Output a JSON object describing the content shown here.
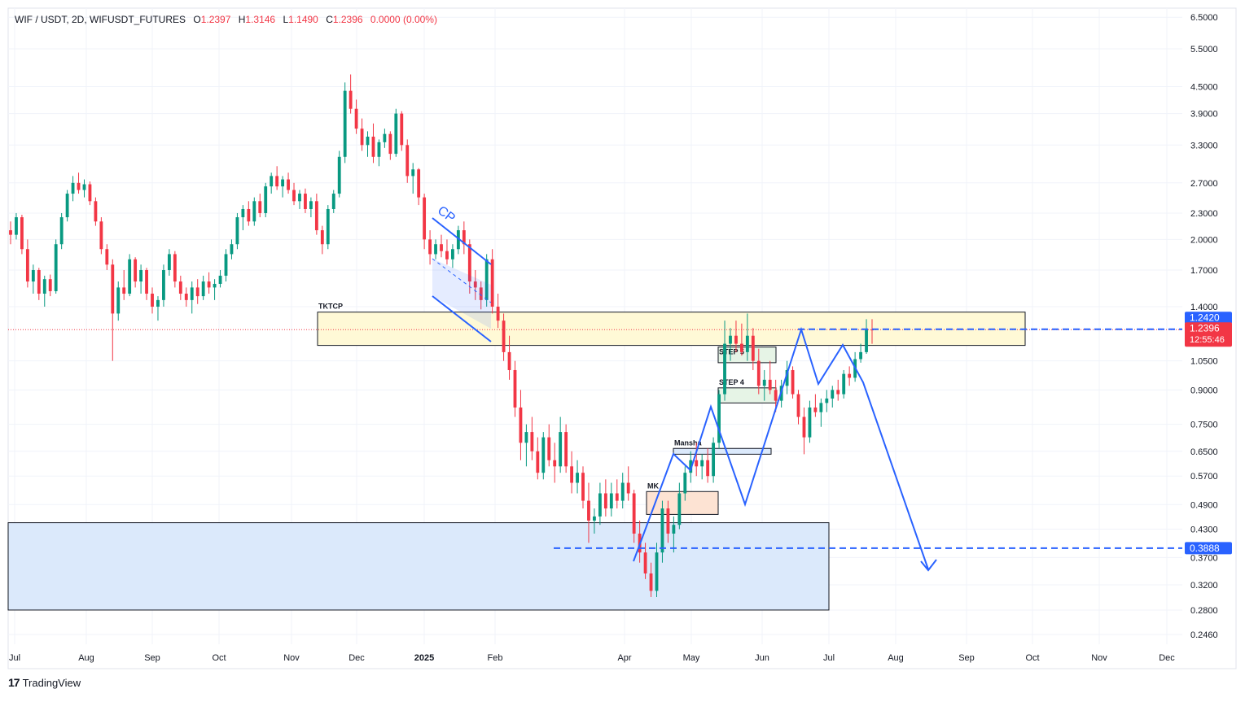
{
  "header": {
    "symbol": "WIF / USDT, 2D, WIFUSDT_FUTURES",
    "open_label": "O",
    "open": "1.2397",
    "high_label": "H",
    "high": "1.3146",
    "low_label": "L",
    "low": "1.1490",
    "close_label": "C",
    "close": "1.2396",
    "change": "0.0000 (0.00%)"
  },
  "branding": {
    "logo_mark": "17",
    "logo_text": "TradingView"
  },
  "colors": {
    "up": "#089981",
    "down": "#f23645",
    "drawing": "#2962ff",
    "zone_yellow": "#fff9d6",
    "zone_blue": "#dbe9fb"
  },
  "chart_data": {
    "type": "candlestick",
    "scale": "log",
    "ylim": [
      0.23,
      7.0
    ],
    "y_ticks": [
      "6.5000",
      "5.5000",
      "4.5000",
      "3.9000",
      "3.3000",
      "2.7000",
      "2.3000",
      "2.0000",
      "1.7000",
      "1.4000",
      "1.0500",
      "0.9000",
      "0.7500",
      "0.6500",
      "0.5700",
      "0.4900",
      "0.4300",
      "0.3700",
      "0.3200",
      "0.2800",
      "0.2460"
    ],
    "x_ticks": [
      "Jul",
      "Aug",
      "Sep",
      "Oct",
      "Nov",
      "Dec",
      "2025",
      "Feb",
      "Apr",
      "May",
      "Jun",
      "Jul",
      "Aug",
      "Sep",
      "Oct",
      "Nov",
      "Dec"
    ],
    "price_labels": [
      {
        "text": "1.2420",
        "value": 1.242,
        "color": "#2962ff"
      },
      {
        "text": "1.2396",
        "value": 1.2396,
        "color": "#f23645",
        "sub": "12:55:46"
      },
      {
        "text": "0.3888",
        "value": 0.3888,
        "color": "#2962ff"
      }
    ],
    "zones": [
      {
        "label": "TKTCP",
        "top": 1.36,
        "bottom": 1.14,
        "fill": "#fff9d6"
      },
      {
        "label": "STEP 5",
        "top": 1.13,
        "bottom": 1.04,
        "fill": "#e6f4e6"
      },
      {
        "label": "STEP 4",
        "top": 0.91,
        "bottom": 0.84,
        "fill": "#e6f4e6"
      },
      {
        "label": "Mansha",
        "top": 0.66,
        "bottom": 0.64,
        "fill": "#dbe9fb"
      },
      {
        "label": "MK",
        "top": 0.525,
        "bottom": 0.465,
        "fill": "#fde3d3"
      },
      {
        "label": "",
        "top": 0.445,
        "bottom": 0.28,
        "fill": "#dbe9fb"
      }
    ],
    "annotations": [
      "CP"
    ],
    "candles": [
      [
        2.1,
        2.2,
        1.95,
        2.05
      ],
      [
        2.05,
        2.3,
        2.0,
        2.25
      ],
      [
        2.25,
        2.28,
        1.85,
        1.9
      ],
      [
        1.9,
        2.0,
        1.55,
        1.6
      ],
      [
        1.6,
        1.75,
        1.5,
        1.7
      ],
      [
        1.7,
        1.72,
        1.45,
        1.5
      ],
      [
        1.5,
        1.65,
        1.4,
        1.62
      ],
      [
        1.62,
        1.66,
        1.48,
        1.52
      ],
      [
        1.52,
        2.0,
        1.5,
        1.95
      ],
      [
        1.95,
        2.3,
        1.9,
        2.25
      ],
      [
        2.25,
        2.6,
        2.2,
        2.55
      ],
      [
        2.55,
        2.8,
        2.45,
        2.7
      ],
      [
        2.7,
        2.85,
        2.55,
        2.6
      ],
      [
        2.6,
        2.75,
        2.5,
        2.68
      ],
      [
        2.68,
        2.72,
        2.4,
        2.45
      ],
      [
        2.45,
        2.5,
        2.15,
        2.2
      ],
      [
        2.2,
        2.25,
        1.85,
        1.9
      ],
      [
        1.9,
        1.95,
        1.7,
        1.75
      ],
      [
        1.75,
        1.8,
        1.05,
        1.35
      ],
      [
        1.35,
        1.6,
        1.3,
        1.55
      ],
      [
        1.55,
        1.7,
        1.45,
        1.5
      ],
      [
        1.5,
        1.85,
        1.48,
        1.8
      ],
      [
        1.8,
        1.82,
        1.55,
        1.6
      ],
      [
        1.6,
        1.75,
        1.5,
        1.7
      ],
      [
        1.7,
        1.72,
        1.45,
        1.5
      ],
      [
        1.5,
        1.55,
        1.35,
        1.4
      ],
      [
        1.4,
        1.48,
        1.3,
        1.45
      ],
      [
        1.45,
        1.75,
        1.4,
        1.7
      ],
      [
        1.7,
        1.9,
        1.65,
        1.85
      ],
      [
        1.85,
        1.88,
        1.55,
        1.6
      ],
      [
        1.6,
        1.65,
        1.45,
        1.5
      ],
      [
        1.5,
        1.55,
        1.4,
        1.45
      ],
      [
        1.45,
        1.6,
        1.35,
        1.55
      ],
      [
        1.55,
        1.62,
        1.42,
        1.48
      ],
      [
        1.48,
        1.65,
        1.45,
        1.6
      ],
      [
        1.6,
        1.68,
        1.5,
        1.55
      ],
      [
        1.55,
        1.62,
        1.45,
        1.58
      ],
      [
        1.58,
        1.7,
        1.55,
        1.65
      ],
      [
        1.65,
        1.9,
        1.6,
        1.85
      ],
      [
        1.85,
        2.0,
        1.8,
        1.95
      ],
      [
        1.95,
        2.3,
        1.9,
        2.25
      ],
      [
        2.25,
        2.4,
        2.1,
        2.35
      ],
      [
        2.35,
        2.45,
        2.15,
        2.2
      ],
      [
        2.2,
        2.5,
        2.15,
        2.45
      ],
      [
        2.45,
        2.55,
        2.25,
        2.3
      ],
      [
        2.3,
        2.7,
        2.25,
        2.65
      ],
      [
        2.65,
        2.85,
        2.55,
        2.8
      ],
      [
        2.8,
        2.95,
        2.6,
        2.65
      ],
      [
        2.65,
        2.8,
        2.5,
        2.75
      ],
      [
        2.75,
        2.85,
        2.55,
        2.6
      ],
      [
        2.6,
        2.7,
        2.4,
        2.45
      ],
      [
        2.45,
        2.6,
        2.35,
        2.55
      ],
      [
        2.55,
        2.62,
        2.3,
        2.35
      ],
      [
        2.35,
        2.5,
        2.25,
        2.45
      ],
      [
        2.45,
        2.55,
        2.05,
        2.1
      ],
      [
        2.1,
        2.15,
        1.85,
        1.95
      ],
      [
        1.95,
        2.4,
        1.9,
        2.35
      ],
      [
        2.35,
        2.6,
        2.3,
        2.55
      ],
      [
        2.55,
        3.2,
        2.5,
        3.1
      ],
      [
        3.1,
        4.6,
        3.0,
        4.4
      ],
      [
        4.4,
        4.8,
        3.9,
        4.0
      ],
      [
        4.0,
        4.2,
        3.5,
        3.6
      ],
      [
        3.6,
        3.8,
        3.2,
        3.3
      ],
      [
        3.3,
        3.55,
        3.1,
        3.45
      ],
      [
        3.45,
        3.7,
        3.0,
        3.1
      ],
      [
        3.1,
        3.4,
        2.95,
        3.35
      ],
      [
        3.35,
        3.6,
        3.25,
        3.5
      ],
      [
        3.5,
        3.55,
        3.05,
        3.15
      ],
      [
        3.15,
        4.0,
        3.1,
        3.9
      ],
      [
        3.9,
        3.95,
        3.2,
        3.3
      ],
      [
        3.3,
        3.4,
        2.7,
        2.8
      ],
      [
        2.8,
        3.0,
        2.55,
        2.9
      ],
      [
        2.9,
        2.92,
        2.4,
        2.5
      ],
      [
        2.5,
        2.55,
        1.9,
        2.0
      ],
      [
        2.0,
        2.1,
        1.75,
        1.85
      ],
      [
        1.85,
        2.0,
        1.8,
        1.95
      ],
      [
        1.95,
        2.05,
        1.82,
        1.88
      ],
      [
        1.88,
        2.0,
        1.75,
        1.8
      ],
      [
        1.8,
        1.95,
        1.72,
        1.9
      ],
      [
        1.9,
        2.15,
        1.85,
        2.1
      ],
      [
        2.1,
        2.2,
        1.85,
        1.95
      ],
      [
        1.95,
        2.0,
        1.5,
        1.6
      ],
      [
        1.6,
        1.7,
        1.45,
        1.55
      ],
      [
        1.55,
        1.6,
        1.38,
        1.45
      ],
      [
        1.45,
        1.85,
        1.4,
        1.8
      ],
      [
        1.8,
        1.9,
        1.35,
        1.4
      ],
      [
        1.4,
        1.5,
        1.25,
        1.3
      ],
      [
        1.3,
        1.35,
        1.05,
        1.1
      ],
      [
        1.1,
        1.2,
        0.95,
        1.0
      ],
      [
        1.0,
        1.05,
        0.78,
        0.82
      ],
      [
        0.82,
        0.9,
        0.62,
        0.68
      ],
      [
        0.68,
        0.75,
        0.6,
        0.72
      ],
      [
        0.72,
        0.78,
        0.62,
        0.65
      ],
      [
        0.65,
        0.7,
        0.56,
        0.58
      ],
      [
        0.58,
        0.72,
        0.56,
        0.7
      ],
      [
        0.7,
        0.75,
        0.6,
        0.62
      ],
      [
        0.62,
        0.68,
        0.55,
        0.6
      ],
      [
        0.6,
        0.78,
        0.58,
        0.72
      ],
      [
        0.72,
        0.75,
        0.58,
        0.6
      ],
      [
        0.6,
        0.65,
        0.52,
        0.55
      ],
      [
        0.55,
        0.62,
        0.52,
        0.58
      ],
      [
        0.58,
        0.6,
        0.48,
        0.5
      ],
      [
        0.5,
        0.55,
        0.4,
        0.45
      ],
      [
        0.45,
        0.48,
        0.42,
        0.46
      ],
      [
        0.46,
        0.55,
        0.44,
        0.52
      ],
      [
        0.52,
        0.56,
        0.46,
        0.48
      ],
      [
        0.48,
        0.55,
        0.46,
        0.52
      ],
      [
        0.52,
        0.56,
        0.48,
        0.5
      ],
      [
        0.5,
        0.58,
        0.48,
        0.55
      ],
      [
        0.55,
        0.6,
        0.5,
        0.52
      ],
      [
        0.52,
        0.53,
        0.4,
        0.42
      ],
      [
        0.42,
        0.45,
        0.36,
        0.38
      ],
      [
        0.38,
        0.4,
        0.33,
        0.34
      ],
      [
        0.34,
        0.36,
        0.3,
        0.31
      ],
      [
        0.31,
        0.4,
        0.3,
        0.38
      ],
      [
        0.38,
        0.5,
        0.36,
        0.48
      ],
      [
        0.48,
        0.5,
        0.4,
        0.42
      ],
      [
        0.42,
        0.46,
        0.38,
        0.44
      ],
      [
        0.44,
        0.55,
        0.43,
        0.52
      ],
      [
        0.52,
        0.6,
        0.5,
        0.58
      ],
      [
        0.58,
        0.65,
        0.55,
        0.62
      ],
      [
        0.62,
        0.68,
        0.57,
        0.6
      ],
      [
        0.6,
        0.64,
        0.56,
        0.62
      ],
      [
        0.62,
        0.66,
        0.55,
        0.57
      ],
      [
        0.57,
        0.7,
        0.55,
        0.68
      ],
      [
        0.68,
        0.9,
        0.66,
        0.88
      ],
      [
        0.88,
        1.3,
        0.85,
        1.15
      ],
      [
        1.15,
        1.25,
        1.05,
        1.2
      ],
      [
        1.2,
        1.3,
        1.1,
        1.15
      ],
      [
        1.15,
        1.28,
        1.08,
        1.1
      ],
      [
        1.1,
        1.35,
        1.05,
        1.2
      ],
      [
        1.2,
        1.25,
        1.0,
        1.05
      ],
      [
        1.05,
        1.12,
        0.88,
        0.92
      ],
      [
        0.92,
        1.0,
        0.85,
        0.95
      ],
      [
        0.95,
        1.05,
        0.88,
        0.9
      ],
      [
        0.9,
        0.95,
        0.8,
        0.85
      ],
      [
        0.85,
        0.95,
        0.82,
        0.92
      ],
      [
        0.92,
        1.05,
        0.88,
        1.0
      ],
      [
        1.0,
        1.02,
        0.86,
        0.88
      ],
      [
        0.88,
        0.9,
        0.75,
        0.78
      ],
      [
        0.78,
        0.82,
        0.64,
        0.7
      ],
      [
        0.7,
        0.85,
        0.68,
        0.82
      ],
      [
        0.82,
        0.88,
        0.78,
        0.8
      ],
      [
        0.8,
        0.86,
        0.74,
        0.84
      ],
      [
        0.84,
        0.9,
        0.8,
        0.86
      ],
      [
        0.86,
        0.92,
        0.82,
        0.9
      ],
      [
        0.9,
        0.95,
        0.85,
        0.88
      ],
      [
        0.88,
        1.0,
        0.86,
        0.98
      ],
      [
        0.98,
        1.02,
        0.92,
        0.96
      ],
      [
        0.96,
        1.1,
        0.94,
        1.06
      ],
      [
        1.06,
        1.15,
        1.04,
        1.1
      ],
      [
        1.1,
        1.31,
        1.09,
        1.24
      ],
      [
        1.24,
        1.31,
        1.15,
        1.2396
      ]
    ]
  }
}
